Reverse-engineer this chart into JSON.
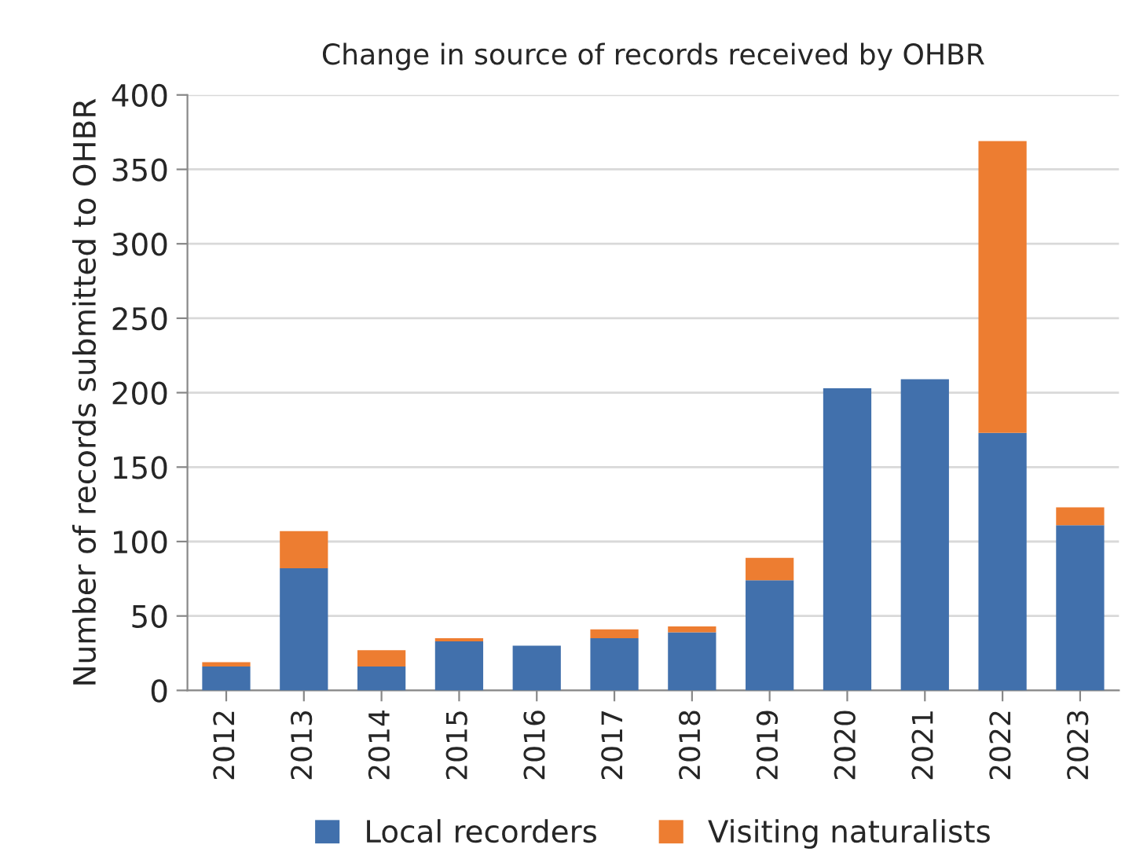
{
  "chart_data": {
    "type": "bar",
    "title": "Change in source of records received by OHBR",
    "ylabel": "Number of records submitted to OHBR",
    "categories": [
      "2012",
      "2013",
      "2014",
      "2015",
      "2016",
      "2017",
      "2018",
      "2019",
      "2020",
      "2021",
      "2022",
      "2023"
    ],
    "series": [
      {
        "name": "Local recorders",
        "color": "#4170ac",
        "values": [
          16,
          82,
          16,
          33,
          30,
          35,
          39,
          74,
          203,
          209,
          173,
          111
        ]
      },
      {
        "name": "Visiting naturalists",
        "color": "#ed7d31",
        "values": [
          3,
          25,
          11,
          2,
          0,
          6,
          4,
          15,
          0,
          0,
          196,
          12
        ]
      }
    ],
    "stacked": true,
    "ylim": [
      0,
      400
    ],
    "yticks": [
      0,
      50,
      100,
      150,
      200,
      250,
      300,
      350,
      400
    ],
    "grid": "y",
    "legend": "bottom"
  }
}
